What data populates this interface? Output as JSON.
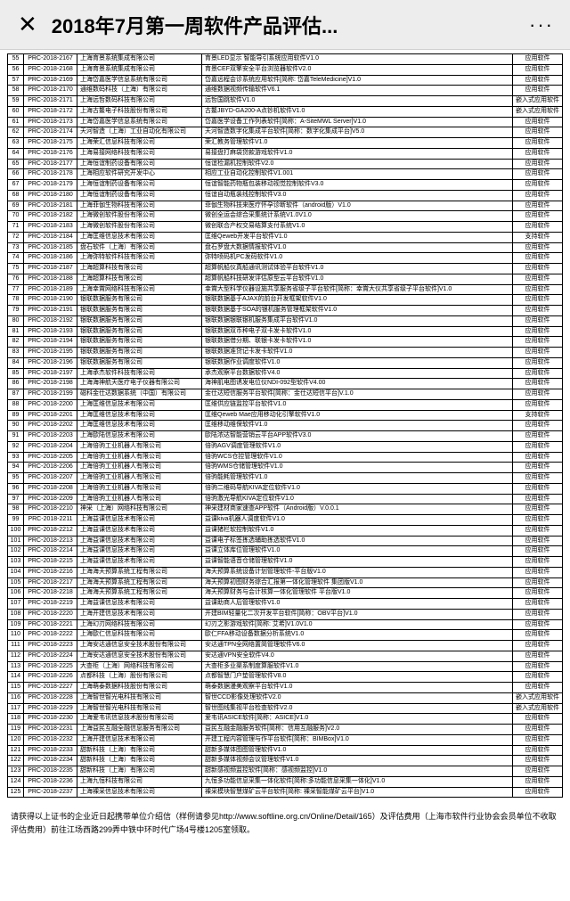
{
  "header": {
    "title": "2018年7月第一周软件产品评估...",
    "close": "✕",
    "more": "···"
  },
  "rows": [
    {
      "n": "55",
      "code": "PRC-2018-2167",
      "company": "上海育景系统集成有限公司",
      "product": "育景LED显示 智能导引系统应用软件V1.0",
      "cat": "应用软件"
    },
    {
      "n": "56",
      "code": "PRC-2018-2168",
      "company": "上海育景系统集成有限公司",
      "product": "育景CEF双擎安全平台浏览器软件V2.0",
      "cat": "应用软件"
    },
    {
      "n": "57",
      "code": "PRC-2018-2169",
      "company": "上海岱嘉医学信息系统有限公司",
      "product": "岱嘉远程会诊系统应用软件[简称: 岱嘉TeleMedicine]V1.0",
      "cat": "应用软件"
    },
    {
      "n": "58",
      "code": "PRC-2018-2170",
      "company": "通维数码科技（上海）有限公司",
      "product": "通维数据视频传输软件V6.1",
      "cat": "应用软件"
    },
    {
      "n": "59",
      "code": "PRC-2018-2171",
      "company": "上海远哲数码科技有限公司",
      "product": "远哲国跳软件V1.0",
      "cat": "嵌入式应用软件"
    },
    {
      "n": "60",
      "code": "PRC-2018-2172",
      "company": "上海古鳌电子科技股份有限公司",
      "product": "古鳌JBYD-GA200-A点钞机软件V1.0",
      "cat": "嵌入式应用软件"
    },
    {
      "n": "61",
      "code": "PRC-2018-2173",
      "company": "上海岱嘉医学信息系统有限公司",
      "product": "岱嘉医学设备工作列表软件[简称：A-SiteMWL Server]V1.0",
      "cat": "应用软件"
    },
    {
      "n": "62",
      "code": "PRC-2018-2174",
      "company": "天河智造（上海）工业自动化有限公司",
      "product": "天河智造数字化集成平台软件[简称：数字化集成平台]V5.0",
      "cat": "应用软件"
    },
    {
      "n": "63",
      "code": "PRC-2018-2175",
      "company": "上海荣汇信息科技有限公司",
      "product": "荣汇教务管理软件V1.0",
      "cat": "应用软件"
    },
    {
      "n": "64",
      "code": "PRC-2018-2176",
      "company": "上海易接网络科技有限公司",
      "product": "易接盘打麻袋贷款游戏软件V1.0",
      "cat": "应用软件"
    },
    {
      "n": "65",
      "code": "PRC-2018-2177",
      "company": "上海恒谊制药设备有限公司",
      "product": "恒谊检漏机控制软件V2.0",
      "cat": "应用软件"
    },
    {
      "n": "66",
      "code": "PRC-2018-2178",
      "company": "上海相应软件研究开发中心",
      "product": "相应工业自动化控制软件V1.001",
      "cat": "应用软件"
    },
    {
      "n": "67",
      "code": "PRC-2018-2179",
      "company": "上海恒谊制药设备有限公司",
      "product": "恒谊智能药物瓶包装移动视觉控制软件V3.0",
      "cat": "应用软件"
    },
    {
      "n": "68",
      "code": "PRC-2018-2180",
      "company": "上海恒谊制药设备有限公司",
      "product": "恒谊自动瓶装线控制软件V3.0",
      "cat": "应用软件"
    },
    {
      "n": "69",
      "code": "PRC-2018-2181",
      "company": "上海菲伽生物科技有限公司",
      "product": "菲伽生物科技来医疗怀孕诊断软件（android版）V1.0",
      "cat": "应用软件"
    },
    {
      "n": "70",
      "code": "PRC-2018-2182",
      "company": "上海微创软件股份有限公司",
      "product": "微创全运会综合采集统计系统V1.0V1.0",
      "cat": "应用软件"
    },
    {
      "n": "71",
      "code": "PRC-2018-2183",
      "company": "上海微创软件股份有限公司",
      "product": "微创联合产权交易结算支付系统V1.0",
      "cat": "应用软件"
    },
    {
      "n": "72",
      "code": "PRC-2018-2184",
      "company": "上海匡维信息技术有限公司",
      "product": "匡维Qeweb开发平台软件V1.0",
      "cat": "支持软件"
    },
    {
      "n": "73",
      "code": "PRC-2018-2185",
      "company": "盘石软件（上海）有限公司",
      "product": "盘石罗盘大数据情报软件V1.0",
      "cat": "应用软件"
    },
    {
      "n": "74",
      "code": "PRC-2018-2186",
      "company": "上海弥特软件科技有限公司",
      "product": "弥特喷码机PC发码软件V1.0",
      "cat": "应用软件"
    },
    {
      "n": "75",
      "code": "PRC-2018-2187",
      "company": "上海超算科技有限公司",
      "product": "超算帆船仪真船通讯测试体验平台软件V1.0",
      "cat": "应用软件"
    },
    {
      "n": "76",
      "code": "PRC-2018-2188",
      "company": "上海超算科技有限公司",
      "product": "超算帆船科技研发评估原型云平台软件V1.0",
      "cat": "应用软件"
    },
    {
      "n": "77",
      "code": "PRC-2018-2189",
      "company": "上海幸賞网络科技有限公司",
      "product": "幸賞大型科学仪器设施共享服务省级子平台软件[简称：幸賞大仪共享省级子平台软件]V1.0",
      "cat": "应用软件"
    },
    {
      "n": "78",
      "code": "PRC-2018-2190",
      "company": "银联数据服务有限公司",
      "product": "银联数据基于AJAX的前台开发框架软件V1.0",
      "cat": "应用软件"
    },
    {
      "n": "79",
      "code": "PRC-2018-2191",
      "company": "银联数据服务有限公司",
      "product": "银联数据基于SOA的银机服务管理框架软件V1.0",
      "cat": "应用软件"
    },
    {
      "n": "80",
      "code": "PRC-2018-2192",
      "company": "银联数据服务有限公司",
      "product": "银联数据银联银机服务集成平台软件V1.0",
      "cat": "应用软件"
    },
    {
      "n": "81",
      "code": "PRC-2018-2193",
      "company": "银联数据服务有限公司",
      "product": "银联数据双币种电子双卡发卡软件V1.0",
      "cat": "应用软件"
    },
    {
      "n": "82",
      "code": "PRC-2018-2194",
      "company": "银联数据服务有限公司",
      "product": "银联数据借分期、联银卡发卡软件V1.0",
      "cat": "应用软件"
    },
    {
      "n": "83",
      "code": "PRC-2018-2195",
      "company": "银联数据服务有限公司",
      "product": "银联数据准贷记卡发卡软件V1.0",
      "cat": "应用软件"
    },
    {
      "n": "84",
      "code": "PRC-2018-2196",
      "company": "银联数据服务有限公司",
      "product": "银联数据作业调度软件V1.0",
      "cat": "应用软件"
    },
    {
      "n": "85",
      "code": "PRC-2018-2197",
      "company": "上海承杰软件科技有限公司",
      "product": "承杰观察平台数据软件V4.0",
      "cat": "应用软件"
    },
    {
      "n": "86",
      "code": "PRC-2018-2198",
      "company": "上海海神航天医疗电子仪器有限公司",
      "product": "海神肌电图诱发电位仪NDI-092型软件V4.00",
      "cat": "应用软件"
    },
    {
      "n": "87",
      "code": "PRC-2018-2199",
      "company": "磁科金仕达数据系统（中国）有限公司",
      "product": "金仕达短信服务平台软件[简称：金仕达短信平台]V.1.0",
      "cat": "应用软件"
    },
    {
      "n": "88",
      "code": "PRC-2018-2200",
      "company": "上海匡维信息技术有限公司",
      "product": "匡维供应链监控平台软件V1.0",
      "cat": "应用软件"
    },
    {
      "n": "89",
      "code": "PRC-2018-2201",
      "company": "上海匡维信息技术有限公司",
      "product": "匡维Qeweb Mae应用移动化引擎软件V1.0",
      "cat": "支持软件"
    },
    {
      "n": "90",
      "code": "PRC-2018-2202",
      "company": "上海匡维信息技术有限公司",
      "product": "匡维移动维保软件V1.0",
      "cat": "应用软件"
    },
    {
      "n": "91",
      "code": "PRC-2018-2203",
      "company": "上海歐陆信息技术有限公司",
      "product": "歐陆浓达智能营销云平台APP软件V3.0",
      "cat": "应用软件"
    },
    {
      "n": "92",
      "code": "PRC-2018-2204",
      "company": "上海倍驹工业机器人有限公司",
      "product": "倍驹AGV调度管理软件V1.0",
      "cat": "应用软件"
    },
    {
      "n": "93",
      "code": "PRC-2018-2205",
      "company": "上海倍驹工业机器人有限公司",
      "product": "倍驹WCS仓控管理软件V1.0",
      "cat": "应用软件"
    },
    {
      "n": "94",
      "code": "PRC-2018-2206",
      "company": "上海倍驹工业机器人有限公司",
      "product": "倍驹WMS仓储管理软件V1.0",
      "cat": "应用软件"
    },
    {
      "n": "95",
      "code": "PRC-2018-2207",
      "company": "上海倍驹工业机器人有限公司",
      "product": "倍驹能耗管理软件V1.0",
      "cat": "应用软件"
    },
    {
      "n": "96",
      "code": "PRC-2018-2208",
      "company": "上海倍驹工业机器人有限公司",
      "product": "倍驹二维码导航KIVA定位软件V1.0",
      "cat": "应用软件"
    },
    {
      "n": "97",
      "code": "PRC-2018-2209",
      "company": "上海倍驹工业机器人有限公司",
      "product": "倍驹激光导航KIVA定位软件V1.0",
      "cat": "应用软件"
    },
    {
      "n": "98",
      "code": "PRC-2018-2210",
      "company": "神采（上海）网络科技有限公司",
      "product": "神采建材商家速查APP软件（Android版）V.0.0.1",
      "cat": "应用软件"
    },
    {
      "n": "99",
      "code": "PRC-2018-2211",
      "company": "上海益课信息技术有限公司",
      "product": "益课kiva机器人调度软件V1.0",
      "cat": "应用软件"
    },
    {
      "n": "100",
      "code": "PRC-2018-2212",
      "company": "上海益课信息技术有限公司",
      "product": "益课猪栏软控制软件V1.0",
      "cat": "应用软件"
    },
    {
      "n": "101",
      "code": "PRC-2018-2213",
      "company": "上海益课信息技术有限公司",
      "product": "益课电子标签拣选辅助拣选软件V1.0",
      "cat": "应用软件"
    },
    {
      "n": "102",
      "code": "PRC-2018-2214",
      "company": "上海益课信息技术有限公司",
      "product": "益课立体库位管理软件V1.0",
      "cat": "应用软件"
    },
    {
      "n": "103",
      "code": "PRC-2018-2215",
      "company": "上海益课信息技术有限公司",
      "product": "益课智能语音仓储管理软件V1.0",
      "cat": "应用软件"
    },
    {
      "n": "104",
      "code": "PRC-2018-2216",
      "company": "上海海天预算系统工程有限公司",
      "product": "海天预算系统设备计划管理软件-平台版V1.0",
      "cat": "应用软件"
    },
    {
      "n": "105",
      "code": "PRC-2018-2217",
      "company": "上海海天预算系统工程有限公司",
      "product": "海天预算初图财务综合汇报第一体化管理软件 集团版V1.0",
      "cat": "应用软件"
    },
    {
      "n": "106",
      "code": "PRC-2018-2218",
      "company": "上海海天预算系统工程有限公司",
      "product": "海天预算财务与会计核算一体化管理软件 平台版V1.0",
      "cat": "应用软件"
    },
    {
      "n": "107",
      "code": "PRC-2018-2219",
      "company": "上海益课信息技术有限公司",
      "product": "益课助商人后管理软件V1.0",
      "cat": "应用软件"
    },
    {
      "n": "108",
      "code": "PRC-2018-2220",
      "company": "上海开建信息技术有限公司",
      "product": "开建BIM轻量化二次开发平台软件[简称：OBV平台]V1.0",
      "cat": "应用软件"
    },
    {
      "n": "109",
      "code": "PRC-2018-2221",
      "company": "上海幻刃网络科技有限公司",
      "product": "幻刃之影游戏软件[简称: 艾希]V1.0V1.0",
      "cat": "应用软件"
    },
    {
      "n": "110",
      "code": "PRC-2018-2222",
      "company": "上海歐仁信息科技有限公司",
      "product": "歐仁FFA移动设备数据分析系统V1.0",
      "cat": "应用软件"
    },
    {
      "n": "111",
      "code": "PRC-2018-2223",
      "company": "上海安达通信息安全技术股份有限公司",
      "product": "安达通TPN全网络置简管理软件V6.0",
      "cat": "应用软件"
    },
    {
      "n": "112",
      "code": "PRC-2018-2224",
      "company": "上海安达通信息安全技术股份有限公司",
      "product": "安达通VPN安全软件V4.0",
      "cat": "应用软件"
    },
    {
      "n": "113",
      "code": "PRC-2018-2225",
      "company": "大查柜（上海）网络科技有限公司",
      "product": "大查柜多业渠系制度算服软件V1.0",
      "cat": "应用软件"
    },
    {
      "n": "114",
      "code": "PRC-2018-2226",
      "company": "点都科技（上海）股份有限公司",
      "product": "点都智慧门户垫管理软件V8.0",
      "cat": "应用软件"
    },
    {
      "n": "115",
      "code": "PRC-2018-2227",
      "company": "上海萌泰数据科技股份有限公司",
      "product": "萌泰数据漫美观察平台软件V1.0",
      "cat": "应用软件"
    },
    {
      "n": "116",
      "code": "PRC-2018-2228",
      "company": "上海智世智光电科技有限公司",
      "product": "智世CCD影像处理软件V2.0",
      "cat": "嵌入式应用软件"
    },
    {
      "n": "117",
      "code": "PRC-2018-2229",
      "company": "上海智世智光电科技有限公司",
      "product": "智世图线集视平台检查软件V2.0",
      "cat": "嵌入式应用软件"
    },
    {
      "n": "118",
      "code": "PRC-2018-2230",
      "company": "上海爱韦讯信息技术股份有限公司",
      "product": "爱韦讯ASICE软件[简称：ASICE]V1.0",
      "cat": "应用软件"
    },
    {
      "n": "119",
      "code": "PRC-2018-2231",
      "company": "上海益民互融全融信息服务有限公司",
      "product": "益民互融金融服务软件[简称：信用互融服务]V2.0",
      "cat": "应用软件"
    },
    {
      "n": "120",
      "code": "PRC-2018-2232",
      "company": "上海开建信息技术有限公司",
      "product": "开建工程内容管理与作平台软件[简称：BIMBox]V1.0",
      "cat": "应用软件"
    },
    {
      "n": "121",
      "code": "PRC-2018-2233",
      "company": "甜新科技（上海）有限公司",
      "product": "甜新多媒体图图管理软件V1.0",
      "cat": "应用软件"
    },
    {
      "n": "122",
      "code": "PRC-2018-2234",
      "company": "甜新科技（上海）有限公司",
      "product": "甜新多媒体视频会议管理软件V1.0",
      "cat": "应用软件"
    },
    {
      "n": "123",
      "code": "PRC-2018-2235",
      "company": "甜新科技（上海）有限公司",
      "product": "甜新感视频监控软件[简称：感视频监控]V1.0",
      "cat": "应用软件"
    },
    {
      "n": "124",
      "code": "PRC-2018-2236",
      "company": "上海九恒科技有限公司",
      "product": "九恒多功能信息采集一体化软件[简称:多功能信息采集一体化]V1.0",
      "cat": "应用软件"
    },
    {
      "n": "125",
      "code": "PRC-2018-2237",
      "company": "上海裸采信息技术有限公司",
      "product": "裸采模块智慧煤矿云平台软件[简称: 裸采智能煤矿云平台]V1.0",
      "cat": "应用软件"
    }
  ],
  "footer": {
    "text": "请获得以上证书的企业近日起携带单位介绍信（样例请参见http://www.softline.org.cn/Online/Detail/165）及评估费用（上海市软件行业协会会员单位不收取评估费用）前往江场西路299弄中铁中环时代广场4号楼1205室领取。"
  }
}
